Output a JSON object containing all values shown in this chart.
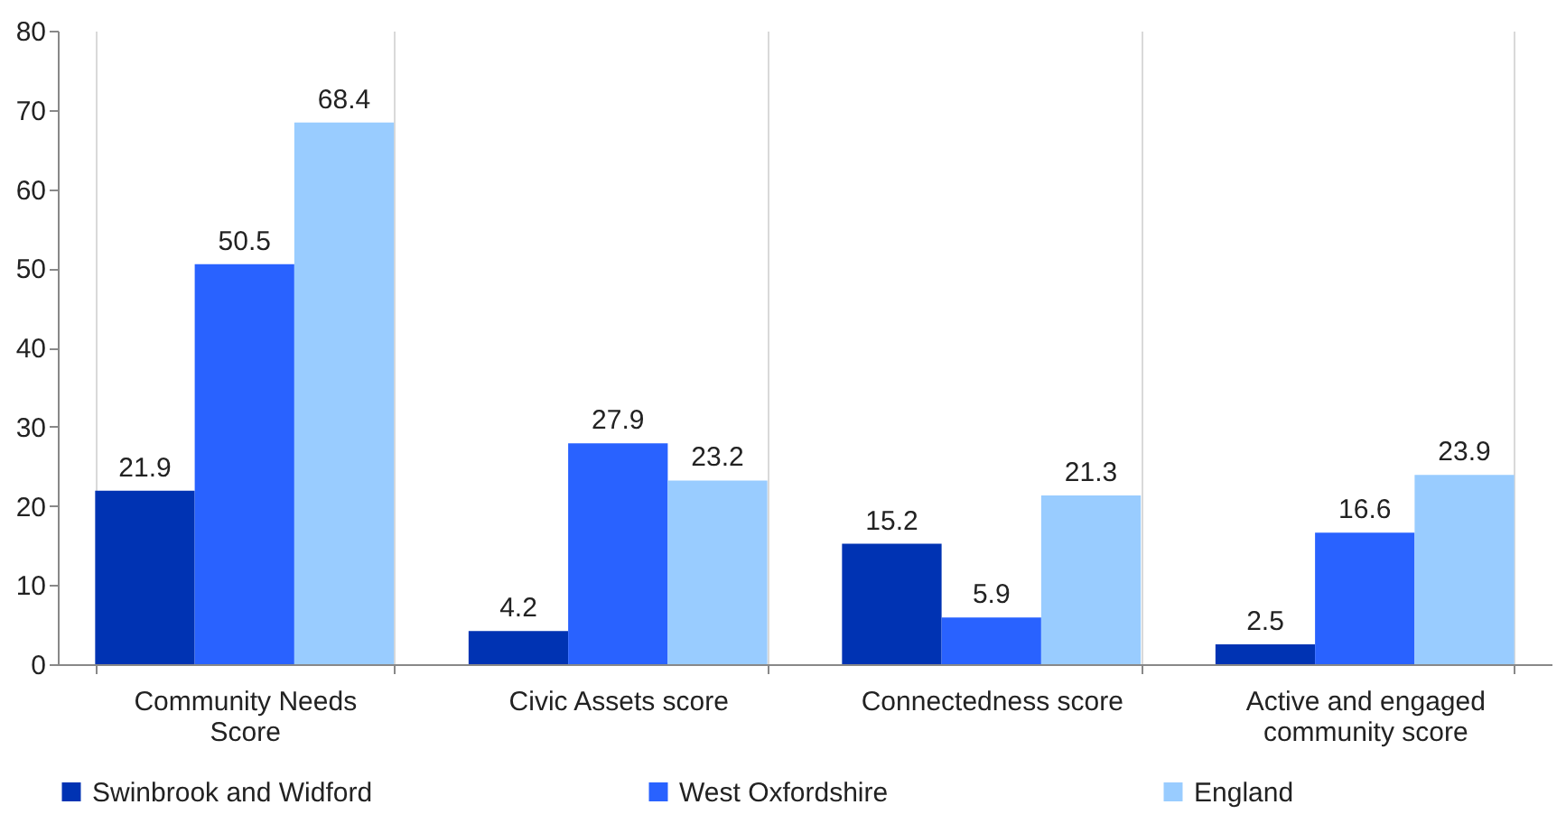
{
  "chart_data": {
    "type": "bar",
    "categories": [
      "Community Needs Score",
      "Civic Assets score",
      "Connectedness score",
      "Active and engaged community score"
    ],
    "series": [
      {
        "name": "Swinbrook and Widford",
        "color": "#0033b3",
        "values": [
          21.9,
          4.2,
          15.2,
          2.5
        ]
      },
      {
        "name": "West Oxfordshire",
        "color": "#2962ff",
        "values": [
          50.5,
          27.9,
          5.9,
          16.6
        ]
      },
      {
        "name": "England",
        "color": "#99ccff",
        "values": [
          68.4,
          23.2,
          21.3,
          23.9
        ]
      }
    ],
    "ylim": [
      0,
      80
    ],
    "yticks": [
      0,
      10,
      20,
      30,
      40,
      50,
      60,
      70,
      80
    ],
    "grid": "x",
    "legend": "bottom",
    "data_labels": true
  }
}
